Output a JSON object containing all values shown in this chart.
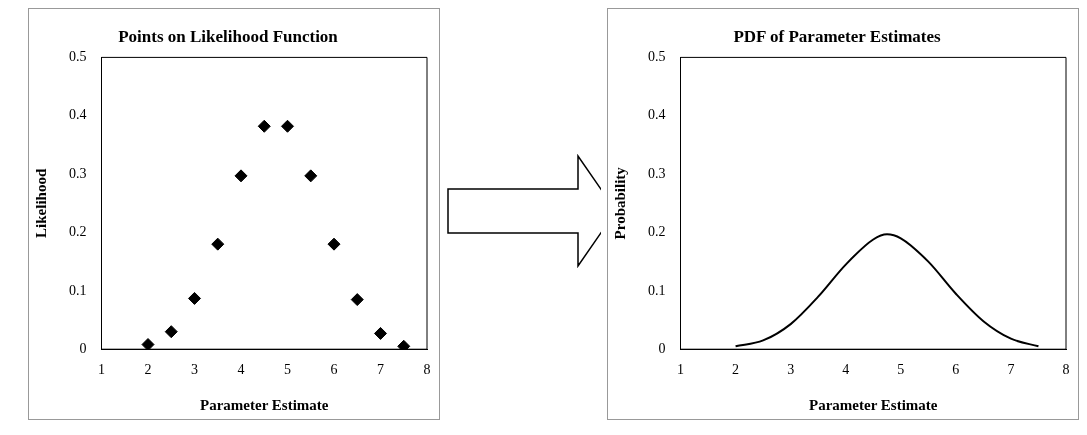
{
  "chart_data": [
    {
      "type": "scatter",
      "title": "Points on Likelihood Function",
      "xlabel": "Parameter Estimate",
      "ylabel": "Likelihood",
      "marker": "diamond",
      "xlim": [
        1,
        8
      ],
      "xticks": [
        1,
        2,
        3,
        4,
        5,
        6,
        7,
        8
      ],
      "ylim": [
        0,
        0.5
      ],
      "yticks": [
        0,
        0.1,
        0.2,
        0.3,
        0.4,
        0.5
      ],
      "series": [
        {
          "color": "#000000",
          "x": [
            2,
            2.5,
            3,
            3.5,
            4,
            4.5,
            5,
            5.5,
            6,
            6.5,
            7,
            7.5
          ],
          "values": [
            0.008,
            0.03,
            0.087,
            0.18,
            0.297,
            0.382,
            0.382,
            0.297,
            0.18,
            0.085,
            0.027,
            0.005
          ]
        }
      ]
    },
    {
      "type": "line",
      "title": "PDF of Parameter Estimates",
      "xlabel": "Parameter Estimate",
      "ylabel": "Probability",
      "marker": "none",
      "line_style": "solid",
      "xlim": [
        1,
        8
      ],
      "xticks": [
        1,
        2,
        3,
        4,
        5,
        6,
        7,
        8
      ],
      "ylim": [
        0,
        0.5
      ],
      "yticks": [
        0,
        0.1,
        0.2,
        0.3,
        0.4,
        0.5
      ],
      "series": [
        {
          "color": "#000000",
          "x": [
            2,
            2.5,
            3,
            3.5,
            4,
            4.5,
            4.75,
            5,
            5.5,
            6,
            6.5,
            7,
            7.5
          ],
          "values": [
            0.005,
            0.015,
            0.043,
            0.09,
            0.145,
            0.188,
            0.197,
            0.19,
            0.15,
            0.095,
            0.048,
            0.018,
            0.005
          ]
        }
      ]
    }
  ]
}
